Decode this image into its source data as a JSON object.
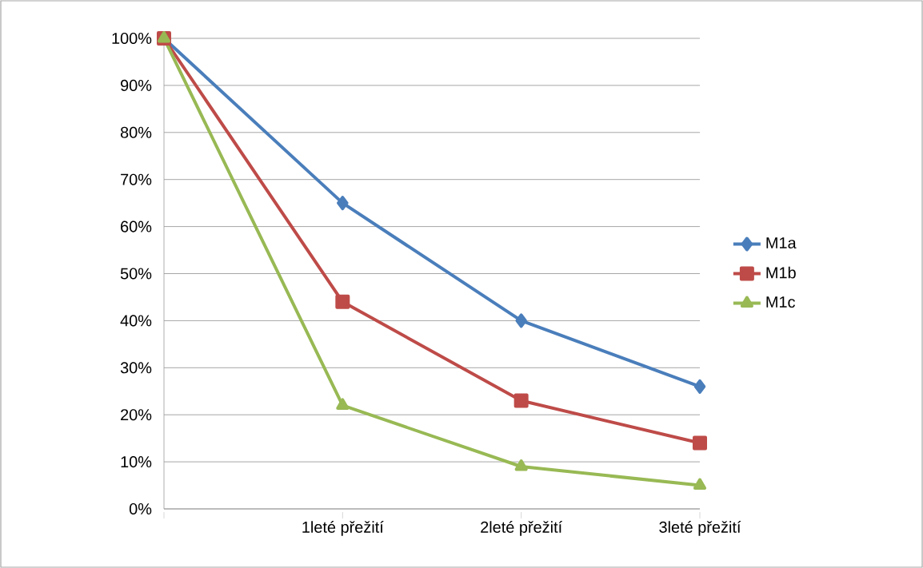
{
  "chart_data": {
    "type": "line",
    "categories": [
      null,
      "1leté přežití",
      "2leté přežití",
      "3leté přežití"
    ],
    "series": [
      {
        "name": "M1a",
        "color": "#4a7ebb",
        "marker": "diamond",
        "values": [
          100,
          65,
          40,
          26
        ]
      },
      {
        "name": "M1b",
        "color": "#be4b48",
        "marker": "square",
        "values": [
          100,
          44,
          23,
          14
        ]
      },
      {
        "name": "M1c",
        "color": "#98b954",
        "marker": "triangle",
        "values": [
          100,
          22,
          9,
          5
        ]
      }
    ],
    "ylim": [
      0,
      100
    ],
    "yticks": [
      {
        "value": 0,
        "label": "0%"
      },
      {
        "value": 10,
        "label": "10%"
      },
      {
        "value": 20,
        "label": "20%"
      },
      {
        "value": 30,
        "label": "30%"
      },
      {
        "value": 40,
        "label": "40%"
      },
      {
        "value": 50,
        "label": "50%"
      },
      {
        "value": 60,
        "label": "60%"
      },
      {
        "value": 70,
        "label": "70%"
      },
      {
        "value": 80,
        "label": "80%"
      },
      {
        "value": 90,
        "label": "90%"
      },
      {
        "value": 100,
        "label": "100%"
      }
    ],
    "grid": "y",
    "legend": "right",
    "line_style": "solid"
  }
}
